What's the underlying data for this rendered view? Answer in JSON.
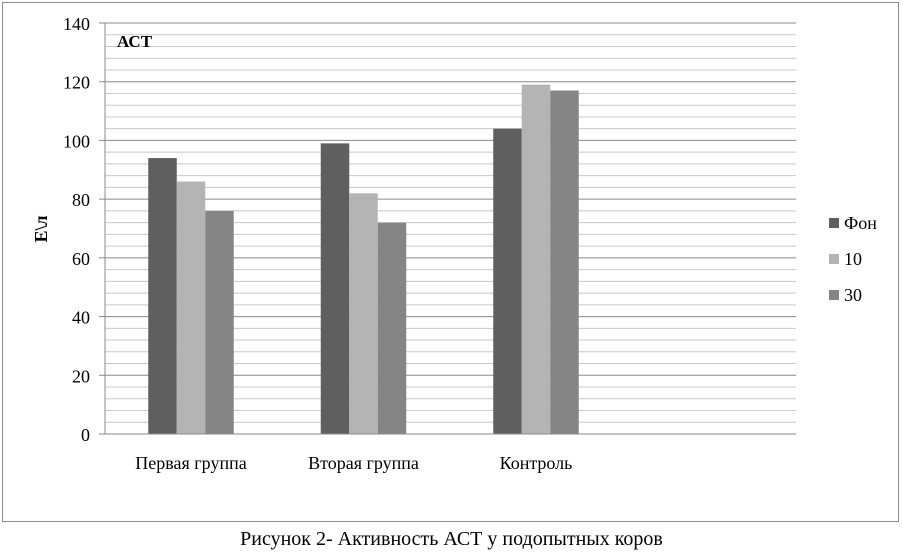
{
  "caption": "Рисунок 2- Активность АСТ у подопытных коров",
  "chart_data": {
    "type": "bar",
    "title": "АСТ",
    "xlabel": "",
    "ylabel": "Е\\л",
    "ylim": [
      0,
      140
    ],
    "yticks": [
      0,
      20,
      40,
      60,
      80,
      100,
      120,
      140
    ],
    "grid": true,
    "legend_position": "right",
    "categories": [
      "Первая группа",
      "Вторая группа",
      "Контроль"
    ],
    "series": [
      {
        "name": "Фон",
        "values": [
          94,
          99,
          104
        ],
        "color": "#5f5f5f"
      },
      {
        "name": "10",
        "values": [
          86,
          82,
          119
        ],
        "color": "#b4b4b4"
      },
      {
        "name": "30",
        "values": [
          76,
          72,
          117
        ],
        "color": "#858585"
      }
    ]
  }
}
